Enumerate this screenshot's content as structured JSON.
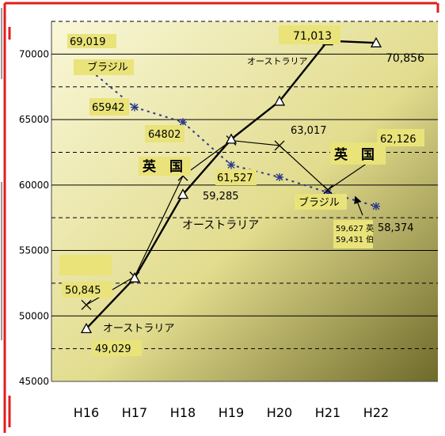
{
  "chart_data": {
    "type": "line",
    "categories": [
      "H16",
      "H17",
      "H18",
      "H19",
      "H20",
      "H21",
      "H22"
    ],
    "ylim": [
      45000,
      72500
    ],
    "yticks": [
      45000,
      50000,
      55000,
      60000,
      65000,
      70000
    ],
    "grid": "horizontal solid major, dashed minor",
    "series": [
      {
        "key": "brazil",
        "values": [
          69019,
          65942,
          64802,
          61527,
          60600,
          59431,
          58374
        ]
      },
      {
        "key": "uk",
        "values": [
          50845,
          53000,
          60700,
          63400,
          63017,
          59627,
          62126
        ]
      },
      {
        "key": "aus",
        "values": [
          49029,
          52900,
          59285,
          63500,
          66400,
          71013,
          70856
        ]
      }
    ],
    "colors": {
      "brazil": "#2b3a8a",
      "uk": "#000000",
      "aus": "#000000",
      "frame": "#e11d1d",
      "label_bg": "#e9e37a",
      "bg_light": "#f7f5d2",
      "bg_dark": "#6f6a2a"
    },
    "labels": {
      "brazil_upper": "ブラジル",
      "brazil_lower": "ブラジル",
      "uk_upper_left": "英　国",
      "uk_mid": "英　国",
      "uk_right": "英　国",
      "aus_mid": "オーストラリア",
      "aus_top": "オーストラリア",
      "aus_bottom": "オーストラリア",
      "v69019": "69,019",
      "v65942": "65942",
      "v64802": "64802",
      "v61527": "61,527",
      "v59285": "59,285",
      "v63017": "63,017",
      "v62126": "62,126",
      "v71013": "71,013",
      "v70856": "70,856",
      "v58374": "58,374",
      "v50845": "50,845",
      "v49029": "49,029",
      "v59627": "59,627 英",
      "v59431": "59,431 伯"
    }
  }
}
